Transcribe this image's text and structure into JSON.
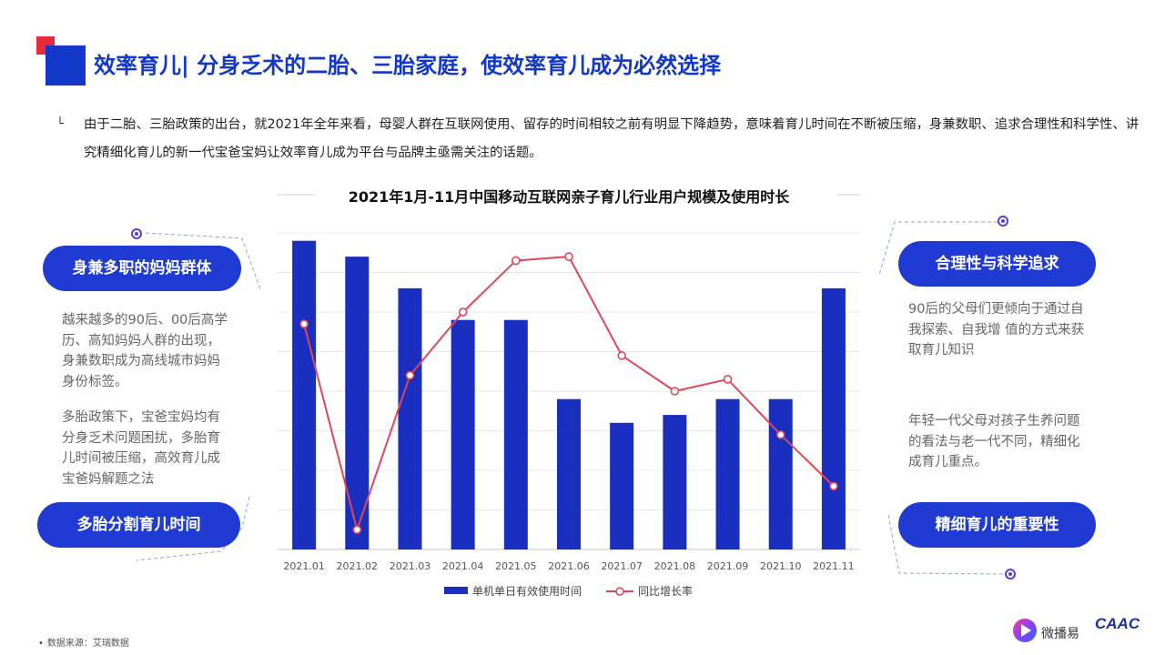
{
  "header": {
    "title": "效率育儿| 分身乏术的二胎、三胎家庭，使效率育儿成为必然选择"
  },
  "intro": {
    "bullet": "└",
    "text": "由于二胎、三胎政策的出台，就2021年全年来看，母婴人群在互联网使用、留存的时间相较之前有明显下降趋势，意味着育儿时间在不断被压缩，身兼数职、追求合理性和科学性、讲究精细化育儿的新一代宝爸宝妈让效率育儿成为平台与品牌主亟需关注的话题。"
  },
  "left_panel": {
    "top_pill": "身兼多职的妈妈群体",
    "text1": "越来越多的90后、00后高学历、高知妈妈人群的出现，身兼数职成为高线城市妈妈身份标签。",
    "text2": "多胎政策下，宝爸宝妈均有分身乏术问题困扰，多胎育儿时间被压缩，高效育儿成宝爸妈解题之法",
    "bottom_pill": "多胎分割育儿时间"
  },
  "right_panel": {
    "top_pill": "合理性与科学追求",
    "text1": "90后的父母们更倾向于通过自我探索、自我增  值的方式来获取育儿知识",
    "text2": "年轻一代父母对孩子生养问题的看法与老一代不同，精细化成育儿重点。",
    "bottom_pill": "精细育儿的重要性"
  },
  "footer": {
    "source": "数据来源：艾瑞数据",
    "logo_weibo": "微播易",
    "logo_caac": "CAAC"
  },
  "colors": {
    "brand_blue": "#1238c9",
    "bar_blue": "#1a2fbf",
    "line_red": "#e0475a",
    "pill_blue": "#1f3bd4"
  },
  "chart_data": {
    "type": "bar",
    "title": "2021年1月-11月中国移动互联网亲子育儿行业用户规模及使用时长",
    "categories": [
      "2021.01",
      "2021.02",
      "2021.03",
      "2021.04",
      "2021.05",
      "2021.06",
      "2021.07",
      "2021.08",
      "2021.09",
      "2021.10",
      "2021.11"
    ],
    "series": [
      {
        "name": "单机单日有效使用时间",
        "type": "bar",
        "axis": "left",
        "values": [
          7.8,
          7.4,
          6.6,
          5.8,
          5.8,
          3.8,
          3.2,
          3.4,
          3.8,
          3.8,
          6.6
        ]
      },
      {
        "name": "同比增长率",
        "type": "line",
        "axis": "right",
        "values": [
          5.7,
          0.5,
          4.4,
          6.0,
          7.3,
          7.4,
          4.9,
          4.0,
          4.3,
          2.9,
          1.6
        ]
      }
    ],
    "ylim_left": [
      0,
      8
    ],
    "ylim_right": [
      0,
      8
    ],
    "grid": true,
    "axis_labels_shown": false,
    "legend": "bottom-center"
  }
}
